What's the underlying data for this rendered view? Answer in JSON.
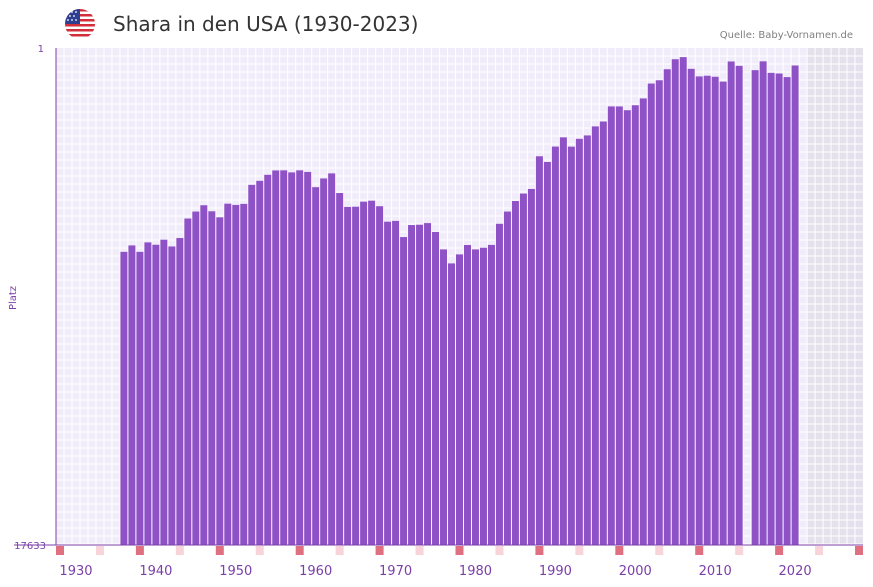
{
  "header": {
    "title": "Shara in den USA (1930-2023)",
    "source": "Quelle: Baby-Vornamen.de",
    "flag_icon": "usa-flag-icon"
  },
  "colors": {
    "bar": "#8e52c6",
    "axis": "#7b3fa8",
    "plot_bg": "#f1ecfa",
    "grid": "#ffffff",
    "future_bg": "#e4e0ec",
    "marker_strong": "#e07080",
    "marker_light": "#f7d3da"
  },
  "chart_data": {
    "type": "bar",
    "title": "Shara in den USA (1930-2023)",
    "xlabel": "",
    "ylabel": "Platz",
    "y_axis_inverted": true,
    "ylim": [
      1,
      17633
    ],
    "ytick_labels": [
      "1",
      "17633"
    ],
    "xlim": [
      1928,
      2028
    ],
    "xticks": [
      1930,
      1940,
      1950,
      1960,
      1970,
      1980,
      1990,
      2000,
      2010,
      2020
    ],
    "shaded_future_from": 2022,
    "grid": true,
    "series": [
      {
        "name": "Platz",
        "points": [
          {
            "year": 1936,
            "rank": 7233
          },
          {
            "year": 1937,
            "rank": 7004
          },
          {
            "year": 1938,
            "rank": 7233
          },
          {
            "year": 1939,
            "rank": 6897
          },
          {
            "year": 1940,
            "rank": 6981
          },
          {
            "year": 1941,
            "rank": 6802
          },
          {
            "year": 1942,
            "rank": 7042
          },
          {
            "year": 1943,
            "rank": 6742
          },
          {
            "year": 1944,
            "rank": 6050
          },
          {
            "year": 1945,
            "rank": 5803
          },
          {
            "year": 1946,
            "rank": 5579
          },
          {
            "year": 1947,
            "rank": 5793
          },
          {
            "year": 1948,
            "rank": 6007
          },
          {
            "year": 1949,
            "rank": 5524
          },
          {
            "year": 1950,
            "rank": 5568
          },
          {
            "year": 1951,
            "rank": 5532
          },
          {
            "year": 1952,
            "rank": 4855
          },
          {
            "year": 1953,
            "rank": 4713
          },
          {
            "year": 1954,
            "rank": 4500
          },
          {
            "year": 1955,
            "rank": 4345
          },
          {
            "year": 1956,
            "rank": 4341
          },
          {
            "year": 1957,
            "rank": 4414
          },
          {
            "year": 1958,
            "rank": 4341
          },
          {
            "year": 1959,
            "rank": 4398
          },
          {
            "year": 1960,
            "rank": 4938
          },
          {
            "year": 1961,
            "rank": 4629
          },
          {
            "year": 1962,
            "rank": 4449
          },
          {
            "year": 1963,
            "rank": 5146
          },
          {
            "year": 1964,
            "rank": 5640
          },
          {
            "year": 1965,
            "rank": 5632
          },
          {
            "year": 1966,
            "rank": 5453
          },
          {
            "year": 1967,
            "rank": 5417
          },
          {
            "year": 1968,
            "rank": 5614
          },
          {
            "year": 1969,
            "rank": 6163
          },
          {
            "year": 1970,
            "rank": 6135
          },
          {
            "year": 1971,
            "rank": 6708
          },
          {
            "year": 1972,
            "rank": 6282
          },
          {
            "year": 1973,
            "rank": 6270
          },
          {
            "year": 1974,
            "rank": 6213
          },
          {
            "year": 1975,
            "rank": 6528
          },
          {
            "year": 1976,
            "rank": 7146
          },
          {
            "year": 1977,
            "rank": 7643
          },
          {
            "year": 1978,
            "rank": 7323
          },
          {
            "year": 1979,
            "rank": 6990
          },
          {
            "year": 1980,
            "rank": 7146
          },
          {
            "year": 1981,
            "rank": 7088
          },
          {
            "year": 1982,
            "rank": 6987
          },
          {
            "year": 1983,
            "rank": 6237
          },
          {
            "year": 1984,
            "rank": 5803
          },
          {
            "year": 1985,
            "rank": 5429
          },
          {
            "year": 1986,
            "rank": 5164
          },
          {
            "year": 1987,
            "rank": 5002
          },
          {
            "year": 1988,
            "rank": 3842
          },
          {
            "year": 1989,
            "rank": 4044
          },
          {
            "year": 1990,
            "rank": 3498
          },
          {
            "year": 1991,
            "rank": 3170
          },
          {
            "year": 1992,
            "rank": 3500
          },
          {
            "year": 1993,
            "rank": 3223
          },
          {
            "year": 1994,
            "rank": 3103
          },
          {
            "year": 1995,
            "rank": 2782
          },
          {
            "year": 1996,
            "rank": 2609
          },
          {
            "year": 1997,
            "rank": 2073
          },
          {
            "year": 1998,
            "rank": 2074
          },
          {
            "year": 1999,
            "rank": 2208
          },
          {
            "year": 2000,
            "rank": 2032
          },
          {
            "year": 2001,
            "rank": 1790
          },
          {
            "year": 2002,
            "rank": 1262
          },
          {
            "year": 2003,
            "rank": 1145
          },
          {
            "year": 2004,
            "rank": 754
          },
          {
            "year": 2005,
            "rank": 399
          },
          {
            "year": 2006,
            "rank": 325
          },
          {
            "year": 2007,
            "rank": 740
          },
          {
            "year": 2008,
            "rank": 1009
          },
          {
            "year": 2009,
            "rank": 985
          },
          {
            "year": 2010,
            "rank": 1021
          },
          {
            "year": 2011,
            "rank": 1193
          },
          {
            "year": 2012,
            "rank": 479
          },
          {
            "year": 2013,
            "rank": 634
          },
          {
            "year": 2015,
            "rank": 787
          },
          {
            "year": 2016,
            "rank": 474
          },
          {
            "year": 2017,
            "rank": 882
          },
          {
            "year": 2018,
            "rank": 906
          },
          {
            "year": 2019,
            "rank": 1033
          },
          {
            "year": 2020,
            "rank": 621
          }
        ]
      }
    ],
    "year_markers": {
      "strong": [
        1928,
        1938,
        1948,
        1958,
        1968,
        1978,
        1988,
        1998,
        2008,
        2018,
        2028
      ],
      "light": [
        1933,
        1943,
        1953,
        1963,
        1973,
        1983,
        1993,
        2003,
        2013,
        2023
      ]
    }
  }
}
